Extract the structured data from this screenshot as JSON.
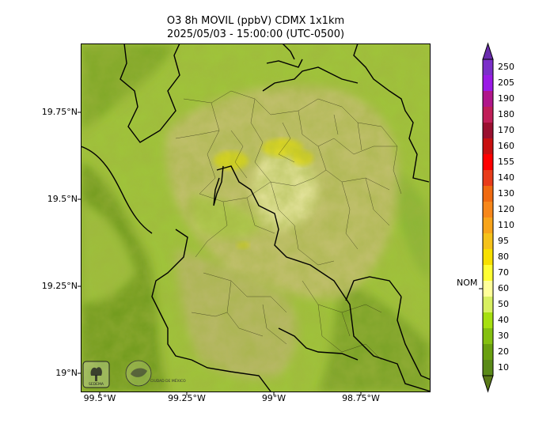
{
  "title": {
    "line1": "O3 8h MOVIL (ppbV) CDMX 1x1km",
    "line2": "2025/05/03 - 15:00:00 (UTC-0500)"
  },
  "axes": {
    "y_ticks": [
      "19.75°N",
      "19.5°N",
      "19.25°N",
      "19°N"
    ],
    "x_ticks": [
      "99.5°W",
      "99.25°W",
      "99°W",
      "98.75°W"
    ]
  },
  "colorbar": {
    "labels": [
      "250",
      "205",
      "190",
      "180",
      "170",
      "160",
      "155",
      "140",
      "130",
      "120",
      "110",
      "95",
      "80",
      "70",
      "60",
      "50",
      "40",
      "30",
      "20",
      "10"
    ],
    "colors": [
      "#7b2fc9",
      "#9a1ae6",
      "#b0168a",
      "#c01e58",
      "#9a1030",
      "#c81010",
      "#ff0000",
      "#e83c1a",
      "#f06a10",
      "#f7871a",
      "#f8a41a",
      "#f5c21a",
      "#f7e000",
      "#ffff33",
      "#ffff99",
      "#d8f060",
      "#a6e010",
      "#84c010",
      "#6aa010",
      "#5a8a18"
    ],
    "marker_label": "NOM",
    "marker_value": 60,
    "extend_top_color": "#6a2cae",
    "extend_bottom_color": "#5a7a18"
  },
  "logos": {
    "logo1_text": "SEDEMA",
    "logo2_text": "CIUDAD DE MÉXICO"
  }
}
